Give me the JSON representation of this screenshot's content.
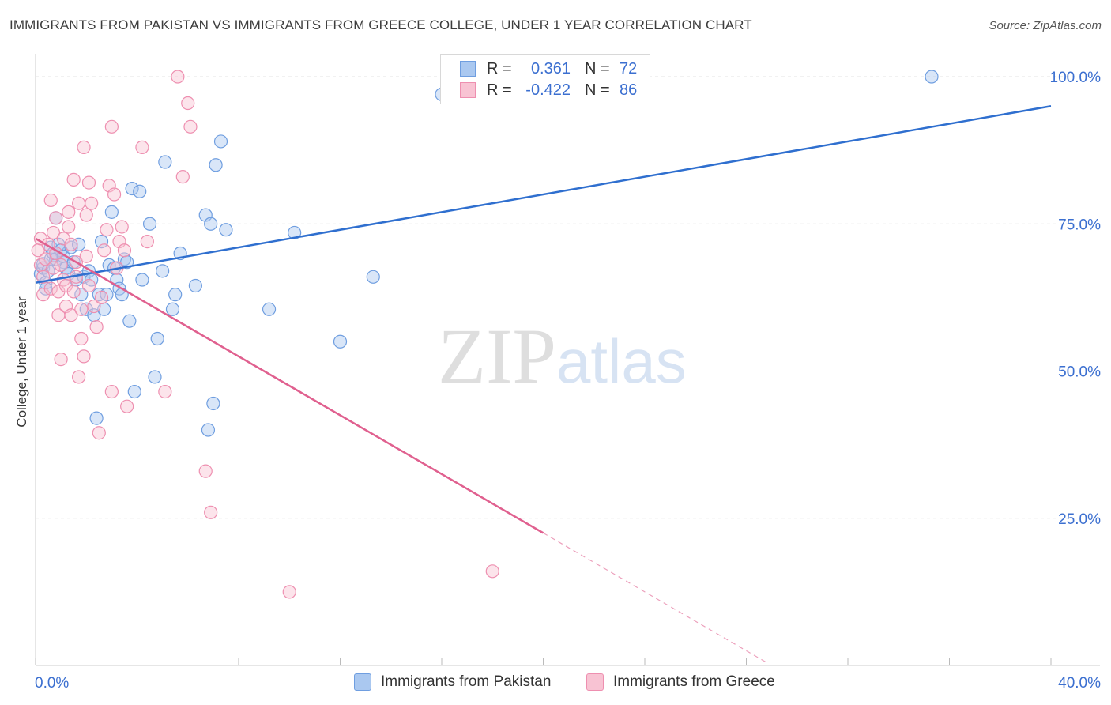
{
  "header": {
    "title": "IMMIGRANTS FROM PAKISTAN VS IMMIGRANTS FROM GREECE COLLEGE, UNDER 1 YEAR CORRELATION CHART",
    "source": "Source: ZipAtlas.com"
  },
  "watermark": {
    "zip": "ZIP",
    "atlas": "atlas"
  },
  "legend": {
    "r_label": "R =",
    "n_label": "N =",
    "series": [
      {
        "name": "Immigrants from Pakistan",
        "r": "0.361",
        "n": "72",
        "fill": "#aac8f0",
        "stroke": "#6f9ee0"
      },
      {
        "name": "Immigrants from Greece",
        "r": "-0.422",
        "n": "86",
        "fill": "#f8c3d3",
        "stroke": "#ee8fb0"
      }
    ]
  },
  "chart_data": {
    "type": "scatter",
    "title": "IMMIGRANTS FROM PAKISTAN VS IMMIGRANTS FROM GREECE COLLEGE, UNDER 1 YEAR CORRELATION CHART",
    "xlabel": "",
    "ylabel": "College, Under 1 year",
    "xlim": [
      0,
      40
    ],
    "ylim": [
      0,
      102
    ],
    "x_tick_labels": [
      "0.0%",
      "40.0%"
    ],
    "y_ticks": [
      25,
      50,
      75,
      100
    ],
    "y_tick_labels": [
      "25.0%",
      "50.0%",
      "75.0%",
      "100.0%"
    ],
    "grid": true,
    "colors": {
      "pakistan_line": "#2f6fcf",
      "greece_line": "#e0608f",
      "tick_text": "#3b6fd0",
      "grid": "#e3e3e3"
    },
    "series": [
      {
        "name": "Immigrants from Pakistan",
        "trend": {
          "x0": 0,
          "y0": 65.0,
          "x1": 40,
          "y1": 95.0
        },
        "points": [
          [
            0.2,
            66.5
          ],
          [
            0.3,
            67.5
          ],
          [
            0.3,
            68.2
          ],
          [
            0.4,
            65.0
          ],
          [
            0.4,
            64.0
          ],
          [
            0.5,
            67.0
          ],
          [
            0.6,
            69.0
          ],
          [
            0.6,
            71.0
          ],
          [
            0.7,
            70.0
          ],
          [
            0.8,
            76.0
          ],
          [
            0.8,
            69.0
          ],
          [
            0.9,
            71.5
          ],
          [
            1.0,
            70.5
          ],
          [
            1.1,
            68.5
          ],
          [
            1.1,
            69.5
          ],
          [
            1.2,
            67.5
          ],
          [
            1.3,
            66.5
          ],
          [
            1.4,
            71.0
          ],
          [
            1.5,
            68.5
          ],
          [
            1.6,
            65.5
          ],
          [
            1.7,
            71.5
          ],
          [
            1.8,
            63.0
          ],
          [
            1.9,
            66.0
          ],
          [
            2.0,
            60.5
          ],
          [
            2.1,
            67.0
          ],
          [
            2.2,
            65.5
          ],
          [
            2.3,
            59.5
          ],
          [
            2.4,
            42.0
          ],
          [
            2.5,
            63.0
          ],
          [
            2.6,
            72.0
          ],
          [
            2.7,
            60.5
          ],
          [
            2.8,
            63.0
          ],
          [
            2.9,
            68.0
          ],
          [
            3.0,
            77.0
          ],
          [
            3.1,
            67.5
          ],
          [
            3.2,
            65.5
          ],
          [
            3.3,
            64.0
          ],
          [
            3.4,
            63.0
          ],
          [
            3.5,
            69.0
          ],
          [
            3.6,
            68.5
          ],
          [
            3.7,
            58.5
          ],
          [
            3.8,
            81.0
          ],
          [
            3.9,
            46.5
          ],
          [
            4.1,
            80.5
          ],
          [
            4.2,
            65.5
          ],
          [
            4.5,
            75.0
          ],
          [
            4.7,
            49.0
          ],
          [
            4.8,
            55.5
          ],
          [
            5.0,
            67.0
          ],
          [
            5.1,
            85.5
          ],
          [
            5.4,
            60.5
          ],
          [
            5.5,
            63.0
          ],
          [
            5.7,
            70.0
          ],
          [
            6.3,
            64.5
          ],
          [
            6.7,
            76.5
          ],
          [
            6.8,
            40.0
          ],
          [
            6.9,
            75.0
          ],
          [
            7.0,
            44.5
          ],
          [
            7.1,
            85.0
          ],
          [
            7.3,
            89.0
          ],
          [
            7.5,
            74.0
          ],
          [
            9.2,
            60.5
          ],
          [
            10.2,
            73.5
          ],
          [
            12.0,
            55.0
          ],
          [
            13.3,
            66.0
          ],
          [
            16.0,
            97.0
          ],
          [
            35.3,
            100.0
          ]
        ]
      },
      {
        "name": "Immigrants from Greece",
        "trend": {
          "x0": 0,
          "y0": 72.5,
          "x1": 20,
          "y1": 22.5
        },
        "trend_dashed": {
          "x0": 20,
          "y0": 22.5,
          "x1": 28.8,
          "y1": 0.5
        },
        "points": [
          [
            0.1,
            70.5
          ],
          [
            0.2,
            68.0
          ],
          [
            0.2,
            72.5
          ],
          [
            0.3,
            63.0
          ],
          [
            0.3,
            66.0
          ],
          [
            0.4,
            69.0
          ],
          [
            0.5,
            71.5
          ],
          [
            0.6,
            64.0
          ],
          [
            0.6,
            79.0
          ],
          [
            0.7,
            73.5
          ],
          [
            0.7,
            67.5
          ],
          [
            0.8,
            70.0
          ],
          [
            0.8,
            76.0
          ],
          [
            0.9,
            63.5
          ],
          [
            0.9,
            59.5
          ],
          [
            1.0,
            52.0
          ],
          [
            1.0,
            68.0
          ],
          [
            1.1,
            72.5
          ],
          [
            1.1,
            65.5
          ],
          [
            1.2,
            64.5
          ],
          [
            1.2,
            61.0
          ],
          [
            1.3,
            74.5
          ],
          [
            1.3,
            77.0
          ],
          [
            1.4,
            71.5
          ],
          [
            1.4,
            59.5
          ],
          [
            1.5,
            63.5
          ],
          [
            1.5,
            82.5
          ],
          [
            1.6,
            66.0
          ],
          [
            1.6,
            68.5
          ],
          [
            1.7,
            78.5
          ],
          [
            1.7,
            49.0
          ],
          [
            1.8,
            55.5
          ],
          [
            1.8,
            60.5
          ],
          [
            1.9,
            88.0
          ],
          [
            1.9,
            52.5
          ],
          [
            2.0,
            76.5
          ],
          [
            2.0,
            69.5
          ],
          [
            2.1,
            82.0
          ],
          [
            2.1,
            64.5
          ],
          [
            2.2,
            78.5
          ],
          [
            2.3,
            61.0
          ],
          [
            2.4,
            57.5
          ],
          [
            2.5,
            39.5
          ],
          [
            2.6,
            62.5
          ],
          [
            2.7,
            70.5
          ],
          [
            2.8,
            74.0
          ],
          [
            2.9,
            81.5
          ],
          [
            3.0,
            46.5
          ],
          [
            3.0,
            91.5
          ],
          [
            3.1,
            80.0
          ],
          [
            3.2,
            67.5
          ],
          [
            3.3,
            72.0
          ],
          [
            3.4,
            74.5
          ],
          [
            3.5,
            70.5
          ],
          [
            3.6,
            44.0
          ],
          [
            4.2,
            88.0
          ],
          [
            4.4,
            72.0
          ],
          [
            5.1,
            46.5
          ],
          [
            5.6,
            100.0
          ],
          [
            5.8,
            83.0
          ],
          [
            6.0,
            95.5
          ],
          [
            6.1,
            91.5
          ],
          [
            6.7,
            33.0
          ],
          [
            6.9,
            26.0
          ],
          [
            10.0,
            12.5
          ],
          [
            18.0,
            16.0
          ]
        ]
      }
    ]
  }
}
